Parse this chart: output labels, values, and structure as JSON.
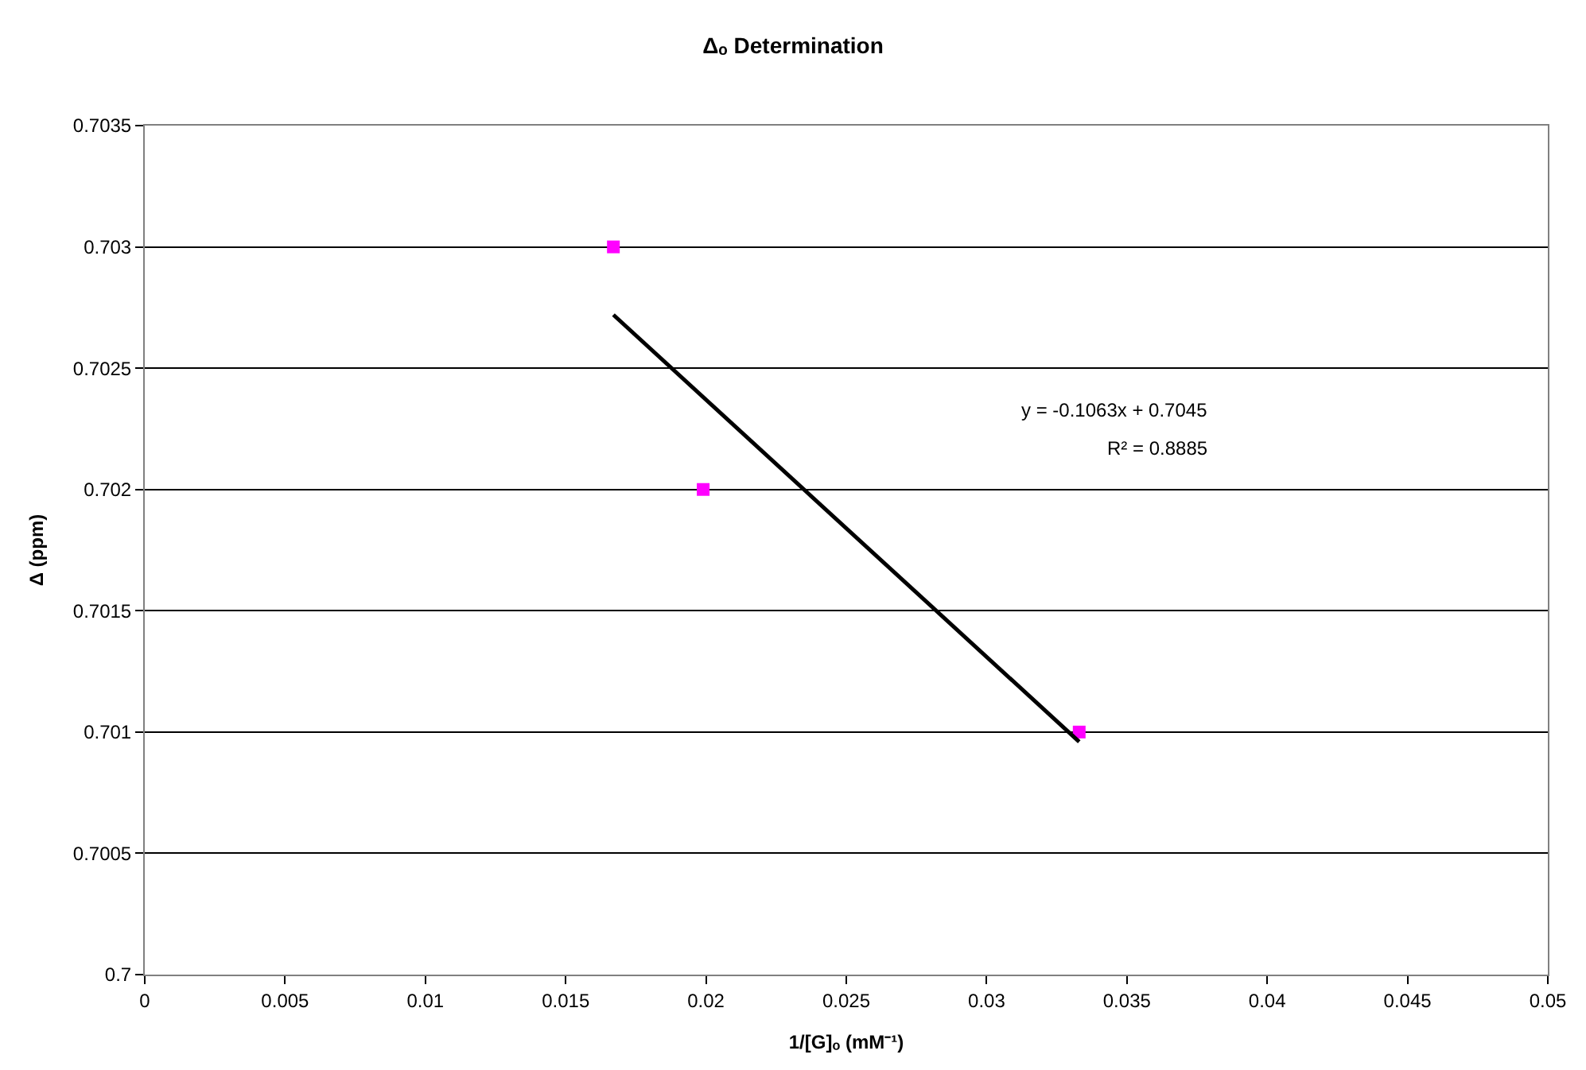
{
  "chart_data": {
    "type": "scatter",
    "title": "Δₒ Determination",
    "xlabel": "1/[G]ₒ (mM⁻¹)",
    "ylabel": "Δ (ppm)",
    "series": [
      {
        "color": "#ff00ff",
        "marker": "square",
        "x": [
          0.0167,
          0.0199,
          0.0333
        ],
        "values": [
          0.703,
          0.702,
          0.701
        ]
      },
      {
        "type": "line",
        "color": "#000000",
        "marker": "none",
        "line_style": "solid",
        "x": [
          0.0167,
          0.0333
        ],
        "values": [
          0.70272,
          0.70096
        ]
      }
    ],
    "annotations": [
      "y = -0.1063x + 0.7045",
      "R² = 0.8885"
    ],
    "xlim": [
      0,
      0.05
    ],
    "xticks": [
      0,
      0.005,
      0.01,
      0.015,
      0.02,
      0.025,
      0.03,
      0.035,
      0.04,
      0.045,
      0.05
    ],
    "ylim": [
      0.7,
      0.7035
    ],
    "yticks": [
      0.7,
      0.7005,
      0.701,
      0.7015,
      0.702,
      0.7025,
      0.703,
      0.7035
    ],
    "grid": "y"
  }
}
